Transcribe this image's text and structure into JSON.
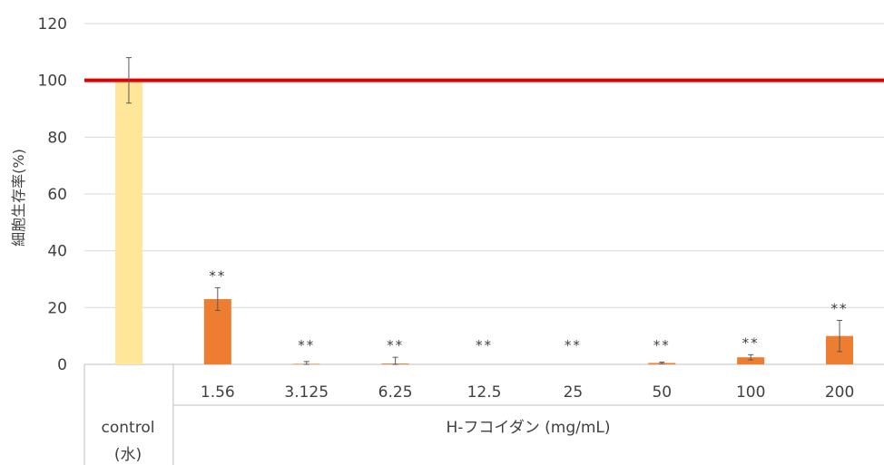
{
  "chart_data": {
    "type": "bar",
    "ylabel": "細胞生存率(%)",
    "ylim": [
      0,
      120
    ],
    "yticks": [
      "0",
      "20",
      "40",
      "60",
      "80",
      "100",
      "120"
    ],
    "categories": [
      "control",
      "1.56",
      "3.125",
      "6.25",
      "12.5",
      "25",
      "50",
      "100",
      "200"
    ],
    "control_group_label": [
      "control",
      "(水)"
    ],
    "treatment_group_label": "H-フコイダン (mg/mL)",
    "values": [
      100,
      23,
      0.2,
      0.3,
      0,
      0,
      0.5,
      2.5,
      10
    ],
    "errors": [
      8,
      4,
      0.8,
      2.2,
      0,
      0,
      0.3,
      0.9,
      5.5
    ],
    "significance": [
      "",
      "**",
      "**",
      "**",
      "**",
      "**",
      "**",
      "**",
      "**"
    ],
    "reference_line": 100,
    "grid": true,
    "colors": {
      "control": "#FFE699",
      "treatment": "#ED7D31",
      "reference_line": "#E00000",
      "gridline": "#D9D9D9",
      "error_bar": "#595959"
    }
  }
}
